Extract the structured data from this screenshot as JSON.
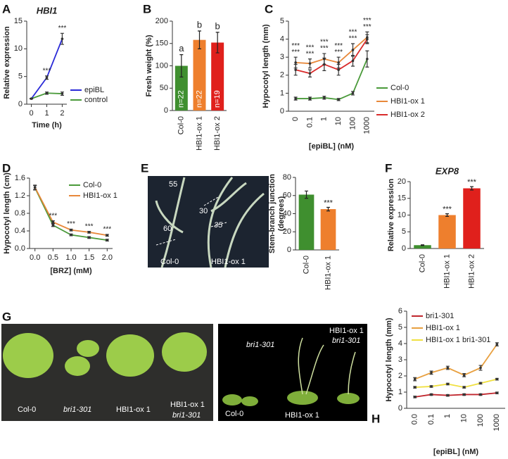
{
  "chart_data": [
    {
      "type": "line",
      "panel": "A",
      "title": "HBI1",
      "title_style": "italic",
      "ylabel": "Relative expression",
      "xlabel": "Time (h)",
      "x": [
        0,
        1,
        2
      ],
      "xlim": [
        -0.3,
        2.3
      ],
      "xticks": [
        0,
        1,
        2
      ],
      "ylim": [
        0,
        15
      ],
      "yticks": [
        0,
        5,
        10,
        15
      ],
      "series": [
        {
          "name": "epiBL",
          "color": "#2a2ad8",
          "values": [
            1,
            4.8,
            11.8
          ],
          "errors": [
            0.05,
            0.3,
            1.0
          ],
          "significance": [
            null,
            "***",
            "***"
          ]
        },
        {
          "name": "control",
          "color": "#4a9a3a",
          "values": [
            1,
            2,
            1.9
          ],
          "errors": [
            0.05,
            0.2,
            0.3
          ]
        }
      ]
    },
    {
      "type": "bar",
      "panel": "B",
      "ylabel": "Fresh weight (%)",
      "categories": [
        "Col-0",
        "HBI1-ox 1",
        "HBI1-ox 2"
      ],
      "values": [
        100,
        158,
        152
      ],
      "errors": [
        25,
        20,
        23
      ],
      "colors": [
        "#3f8f2f",
        "#ee7f2d",
        "#e0201c"
      ],
      "letters": [
        "a",
        "b",
        "b"
      ],
      "n_labels": [
        "n=22",
        "n=22",
        "n=19"
      ],
      "ylim": [
        0,
        200
      ],
      "yticks": [
        0,
        50,
        100,
        150,
        200
      ]
    },
    {
      "type": "line",
      "panel": "C",
      "ylabel": "Hypocotyl length (mm)",
      "xlabel": "[epiBL] (nM)",
      "categories": [
        "0",
        "0.1",
        "1",
        "10",
        "100",
        "1000"
      ],
      "ylim": [
        0,
        5
      ],
      "yticks": [
        0,
        1,
        2,
        3,
        4,
        5
      ],
      "series": [
        {
          "name": "Col-0",
          "color": "#4a9a3a",
          "values": [
            0.7,
            0.7,
            0.75,
            0.65,
            1.0,
            2.9
          ],
          "errors": [
            0.08,
            0.08,
            0.08,
            0.06,
            0.1,
            0.45
          ]
        },
        {
          "name": "HBI1-ox 1",
          "color": "#e8883a",
          "values": [
            2.7,
            2.65,
            2.9,
            2.7,
            3.4,
            4.1
          ],
          "errors": [
            0.3,
            0.25,
            0.3,
            0.3,
            0.35,
            0.3
          ],
          "significance": [
            "***",
            "***",
            "***",
            "***",
            "***",
            "***"
          ]
        },
        {
          "name": "HBI1-ox 2",
          "color": "#d92b2b",
          "values": [
            2.3,
            2.1,
            2.6,
            2.3,
            2.8,
            4.0
          ],
          "errors": [
            0.3,
            0.2,
            0.35,
            0.3,
            0.3,
            0.25
          ],
          "significance": [
            "***",
            "***",
            "***",
            "***",
            "***",
            "***"
          ]
        }
      ]
    },
    {
      "type": "line",
      "panel": "D",
      "ylabel": "Hypocotyl length (cm)",
      "xlabel": "[BRZ] (mM)",
      "x": [
        0,
        0.5,
        1,
        1.5,
        2
      ],
      "xlim": [
        -0.15,
        2.15
      ],
      "xticks": [
        {
          "value": 0,
          "label": "0.0"
        },
        0.5,
        {
          "value": 1,
          "label": "1.0"
        },
        1.5,
        {
          "value": 2,
          "label": "2.0"
        }
      ],
      "ylim": [
        0,
        1.6
      ],
      "yticks": [
        {
          "value": 0,
          "label": "0.0"
        },
        0.4,
        0.8,
        1.2,
        1.6
      ],
      "series": [
        {
          "name": "Col-0",
          "color": "#4a9a3a",
          "values": [
            1.38,
            0.53,
            0.31,
            0.25,
            0.19
          ],
          "errors": [
            0.05,
            0.03,
            0.02,
            0.02,
            0.02
          ]
        },
        {
          "name": "HBI1-ox 1",
          "color": "#e8883a",
          "values": [
            1.39,
            0.6,
            0.42,
            0.37,
            0.3
          ],
          "errors": [
            0.05,
            0.03,
            0.02,
            0.02,
            0.02
          ],
          "significance": [
            null,
            "***",
            "***",
            "***",
            "***"
          ]
        }
      ]
    },
    {
      "type": "bar",
      "panel": "E",
      "ylabel": [
        "Stem-branch junction",
        "(degrees)"
      ],
      "categories": [
        "Col-0",
        "HBI1-ox 1"
      ],
      "values": [
        61,
        45
      ],
      "errors": [
        4,
        2
      ],
      "colors": [
        "#3f8f2f",
        "#ee7f2d"
      ],
      "significance": [
        null,
        "***"
      ],
      "ylim": [
        0,
        80
      ],
      "yticks": [
        0,
        20,
        40,
        60,
        80
      ]
    },
    {
      "type": "bar",
      "panel": "F",
      "title": "EXP8",
      "title_style": "italic",
      "ylabel": "Relative expression",
      "categories": [
        "Col-0",
        "HBI1-ox 1",
        "HBI1-ox 2"
      ],
      "values": [
        1,
        10,
        18
      ],
      "errors": [
        0.1,
        0.4,
        0.5
      ],
      "colors": [
        "#3f8f2f",
        "#ee7f2d",
        "#e0201c"
      ],
      "significance": [
        null,
        "***",
        "***"
      ],
      "ylim": [
        0,
        20
      ],
      "yticks": [
        0,
        5,
        10,
        15,
        20
      ]
    },
    {
      "type": "line",
      "panel": "H",
      "ylabel": "Hypocotyl length (mm)",
      "xlabel": "[epiBL] (nM)",
      "categories": [
        "0.0",
        "0.1",
        "1",
        "10",
        "100",
        "1000"
      ],
      "ylim": [
        0,
        6
      ],
      "yticks": [
        0,
        1,
        2,
        3,
        4,
        5,
        6
      ],
      "series": [
        {
          "name": "bri1-301",
          "color": "#c0262d",
          "values": [
            0.7,
            0.85,
            0.8,
            0.85,
            0.85,
            0.95
          ],
          "errors": [
            0.05,
            0.05,
            0.05,
            0.05,
            0.05,
            0.05
          ]
        },
        {
          "name": "HBI1-ox 1",
          "color": "#e8a040",
          "values": [
            1.8,
            2.2,
            2.5,
            2.05,
            2.5,
            3.95
          ],
          "errors": [
            0.1,
            0.1,
            0.1,
            0.1,
            0.15,
            0.1
          ]
        },
        {
          "name": "HBI1-ox 1 bri1-301",
          "color": "#f0e040",
          "values": [
            1.3,
            1.35,
            1.5,
            1.3,
            1.55,
            1.8
          ],
          "errors": [
            0.05,
            0.05,
            0.05,
            0.05,
            0.05,
            0.05
          ]
        }
      ]
    }
  ],
  "photo_E": {
    "angle_labels": [
      "55",
      "60",
      "30",
      "35"
    ],
    "genotypes": [
      "Col-0",
      "HBI1-ox 1"
    ]
  },
  "photo_G": {
    "panel": "G",
    "left_labels": [
      [
        "Col-0"
      ],
      [
        "bri1-301"
      ],
      [
        "HBI1-ox 1"
      ],
      [
        "HBI1-ox 1",
        "bri1-301"
      ]
    ],
    "right_labels": [
      [
        "bri1-301"
      ],
      [
        "HBI1-ox 1",
        "bri1-301"
      ],
      [
        "Col-0"
      ],
      [
        "HBI1-ox 1"
      ]
    ]
  }
}
